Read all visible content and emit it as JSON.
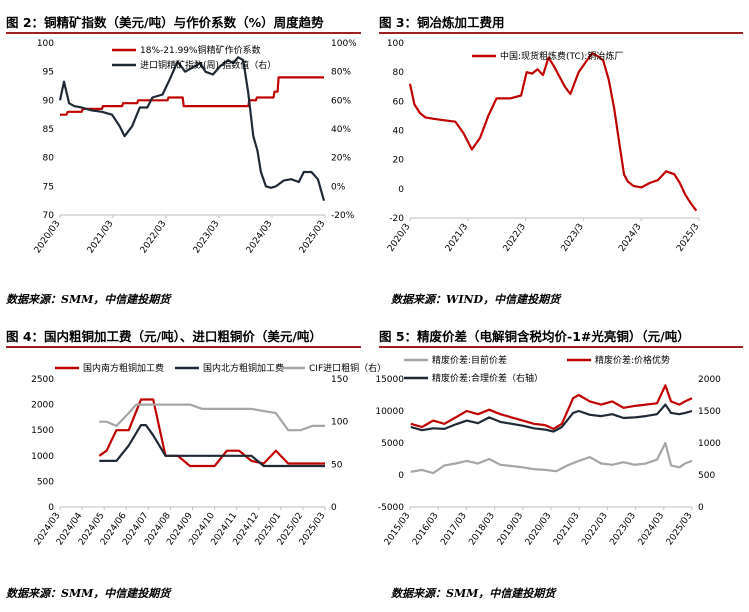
{
  "panels": {
    "p2": {
      "title": "图 2：铜精矿指数（美元/吨）与作价系数（%）周度趋势",
      "source": "数据来源：SMM，中信建投期货"
    },
    "p3": {
      "title": "图 3：铜冶炼加工费用",
      "source": "数据来源：WIND，中信建投期货"
    },
    "p4": {
      "title": "图 4：国内粗铜加工费（元/吨）、进口粗铜价（美元/吨）",
      "source": "数据来源：SMM，中信建投期货"
    },
    "p5": {
      "title": "图 5：精废价差（电解铜含税均价-1#光亮铜）（元/吨）",
      "source": "数据来源：SMM，中信建投期货"
    }
  },
  "colors": {
    "red": "#c00000",
    "dark": "#1f2a36",
    "gray": "#a6a6a6",
    "rule": "#9e1f1f"
  },
  "chart_data": [
    {
      "id": "fig2",
      "type": "line",
      "x_ticks": [
        "2020/03",
        "2021/03",
        "2022/03",
        "2023/03",
        "2024/03",
        "2025/03"
      ],
      "x_range": [
        2020.17,
        2025.42
      ],
      "ylim": [
        70,
        100
      ],
      "y_ticks": [
        70,
        75,
        80,
        85,
        90,
        95,
        100
      ],
      "y2lim": [
        -20,
        100
      ],
      "y2_ticks": [
        "-20%",
        "0%",
        "20%",
        "40%",
        "60%",
        "80%",
        "100%"
      ],
      "y2_values": [
        -20,
        0,
        20,
        40,
        60,
        80,
        100
      ],
      "legend": [
        "18%-21.99%铜精矿作价系数",
        "进口铜精矿指数(周)-指数值（右）"
      ],
      "series": [
        {
          "name": "18%-21.99%铜精矿作价系数",
          "axis": "left",
          "color": "red",
          "x": [
            2020.17,
            2020.3,
            2020.32,
            2020.6,
            2020.62,
            2021.0,
            2021.02,
            2021.4,
            2021.42,
            2021.7,
            2021.72,
            2022.3,
            2022.32,
            2022.6,
            2022.62,
            2023.0,
            2023.02,
            2023.9,
            2023.92,
            2024.05,
            2024.07,
            2024.4,
            2024.42,
            2024.48,
            2024.5,
            2025.0,
            2025.02,
            2025.4
          ],
          "y": [
            87.5,
            87.5,
            88,
            88,
            88.5,
            88.5,
            89,
            89,
            89.5,
            89.5,
            90,
            90,
            90.5,
            90.5,
            89,
            89,
            89,
            89,
            90,
            90,
            90.5,
            90.5,
            91.5,
            91.5,
            94,
            94,
            94,
            94
          ]
        },
        {
          "name": "进口铜精矿指数(周)-指数值（右）",
          "axis": "right",
          "color": "dark",
          "x": [
            2020.17,
            2020.25,
            2020.35,
            2020.45,
            2020.6,
            2020.8,
            2021.0,
            2021.2,
            2021.35,
            2021.45,
            2021.6,
            2021.75,
            2021.9,
            2022.0,
            2022.2,
            2022.35,
            2022.5,
            2022.65,
            2022.8,
            2022.95,
            2023.05,
            2023.2,
            2023.35,
            2023.5,
            2023.6,
            2023.7,
            2023.8,
            2023.9,
            2024.0,
            2024.08,
            2024.15,
            2024.25,
            2024.35,
            2024.45,
            2024.6,
            2024.75,
            2024.9,
            2025.0,
            2025.15,
            2025.28,
            2025.4
          ],
          "y": [
            60,
            73,
            58,
            56,
            55,
            53,
            52,
            50,
            42,
            35,
            42,
            55,
            55,
            62,
            64,
            75,
            87,
            80,
            83,
            86,
            80,
            78,
            84,
            88,
            86,
            90,
            88,
            65,
            35,
            25,
            10,
            0,
            -1,
            0,
            4,
            5,
            3,
            10,
            10,
            5,
            -10
          ]
        }
      ]
    },
    {
      "id": "fig3",
      "type": "line",
      "x_ticks": [
        "2020/3",
        "2021/3",
        "2022/3",
        "2023/3",
        "2024/3",
        "2025/3"
      ],
      "x_range": [
        2020.17,
        2025.45
      ],
      "ylim": [
        -20,
        100
      ],
      "y_ticks": [
        -20,
        0,
        20,
        40,
        60,
        80,
        100
      ],
      "legend": [
        "中国:现货粗炼费(TC):铜冶炼厂"
      ],
      "series": [
        {
          "name": "中国:现货粗炼费(TC):铜冶炼厂",
          "color": "red",
          "x": [
            2020.17,
            2020.25,
            2020.35,
            2020.45,
            2020.6,
            2020.8,
            2021.0,
            2021.15,
            2021.3,
            2021.45,
            2021.6,
            2021.75,
            2021.85,
            2022.0,
            2022.2,
            2022.3,
            2022.4,
            2022.5,
            2022.6,
            2022.7,
            2022.8,
            2022.9,
            2023.0,
            2023.1,
            2023.25,
            2023.4,
            2023.5,
            2023.6,
            2023.7,
            2023.8,
            2023.9,
            2024.0,
            2024.08,
            2024.15,
            2024.25,
            2024.4,
            2024.55,
            2024.7,
            2024.85,
            2025.0,
            2025.1,
            2025.2,
            2025.3,
            2025.4
          ],
          "y": [
            72,
            58,
            52,
            49,
            48,
            47,
            46,
            38,
            27,
            35,
            50,
            62,
            62,
            62,
            64,
            80,
            79,
            82,
            78,
            90,
            84,
            77,
            70,
            65,
            80,
            88,
            93,
            91,
            88,
            75,
            55,
            30,
            10,
            5,
            2,
            1,
            4,
            6,
            12,
            10,
            4,
            -4,
            -10,
            -15
          ]
        }
      ]
    },
    {
      "id": "fig4",
      "type": "line",
      "x_ticks": [
        "2024/03",
        "2024/04",
        "2024/05",
        "2024/06",
        "2024/07",
        "2024/08",
        "2024/09",
        "2024/10",
        "2024/11",
        "2024/12",
        "2025/01",
        "2025/02",
        "2025/03"
      ],
      "x_range": [
        2024.17,
        2025.25
      ],
      "ylim": [
        0,
        2500
      ],
      "y_ticks": [
        0,
        500,
        1000,
        1500,
        2000,
        2500
      ],
      "y2lim": [
        0,
        150
      ],
      "y2_ticks": [
        0,
        50,
        100,
        150
      ],
      "legend": [
        "国内南方粗铜加工费",
        "国内北方粗铜加工费",
        "CIF进口粗铜（右）"
      ],
      "series": [
        {
          "name": "国内南方粗铜加工费",
          "axis": "left",
          "color": "red",
          "x": [
            2024.33,
            2024.36,
            2024.4,
            2024.45,
            2024.5,
            2024.52,
            2024.55,
            2024.6,
            2024.65,
            2024.7,
            2024.75,
            2024.8,
            2024.85,
            2024.9,
            2024.95,
            2025.0,
            2025.05,
            2025.1,
            2025.15,
            2025.2,
            2025.25
          ],
          "y": [
            1000,
            1100,
            1500,
            1500,
            2100,
            2100,
            2100,
            1000,
            1000,
            800,
            800,
            800,
            1100,
            1100,
            900,
            850,
            1100,
            850,
            850,
            850,
            850
          ]
        },
        {
          "name": "国内北方粗铜加工费",
          "axis": "left",
          "color": "dark",
          "x": [
            2024.33,
            2024.4,
            2024.45,
            2024.5,
            2024.52,
            2024.55,
            2024.6,
            2024.65,
            2024.7,
            2024.75,
            2024.8,
            2024.85,
            2024.9,
            2024.95,
            2025.0,
            2025.05,
            2025.1,
            2025.15,
            2025.2,
            2025.25
          ],
          "y": [
            900,
            900,
            1200,
            1600,
            1600,
            1400,
            1000,
            1000,
            1000,
            1000,
            1000,
            1000,
            1000,
            1000,
            800,
            800,
            800,
            800,
            800,
            800
          ]
        },
        {
          "name": "CIF进口粗铜（右）",
          "axis": "right",
          "color": "gray",
          "x": [
            2024.33,
            2024.36,
            2024.4,
            2024.45,
            2024.48,
            2024.52,
            2024.6,
            2024.65,
            2024.7,
            2024.75,
            2024.85,
            2024.95,
            2025.05,
            2025.1,
            2025.15,
            2025.2,
            2025.25
          ],
          "y": [
            100,
            100,
            95,
            110,
            120,
            120,
            120,
            120,
            120,
            115,
            115,
            115,
            110,
            90,
            90,
            95,
            95
          ]
        }
      ]
    },
    {
      "id": "fig5",
      "type": "line",
      "x_ticks": [
        "2015/03",
        "2016/03",
        "2017/03",
        "2018/03",
        "2019/03",
        "2020/03",
        "2021/03",
        "2022/03",
        "2023/03",
        "2024/03",
        "2025/03"
      ],
      "x_range": [
        2015.17,
        2025.25
      ],
      "ylim": [
        -5000,
        15000
      ],
      "y_ticks": [
        -5000,
        0,
        5000,
        10000,
        15000
      ],
      "y2lim": [
        0,
        2000
      ],
      "y2_ticks": [
        0,
        500,
        1000,
        1500,
        2000
      ],
      "legend": [
        "精废价差:目前价差",
        "精废价差:价格优势",
        "精废价差:合理价差（右轴）"
      ],
      "series": [
        {
          "name": "精废价差:目前价差",
          "axis": "left",
          "color": "gray",
          "x": [
            2015.2,
            2015.6,
            2016.0,
            2016.4,
            2016.8,
            2017.2,
            2017.6,
            2018.0,
            2018.4,
            2018.8,
            2019.2,
            2019.6,
            2020.0,
            2020.4,
            2020.8,
            2021.2,
            2021.6,
            2022.0,
            2022.4,
            2022.8,
            2023.2,
            2023.6,
            2024.0,
            2024.3,
            2024.5,
            2024.8,
            2025.0,
            2025.25
          ],
          "y": [
            500,
            800,
            300,
            1500,
            1800,
            2200,
            1800,
            2500,
            1600,
            1400,
            1200,
            900,
            800,
            600,
            1500,
            2200,
            2800,
            1800,
            1600,
            2000,
            1600,
            1800,
            2400,
            5000,
            1500,
            1200,
            1800,
            2200
          ]
        },
        {
          "name": "精废价差:价格优势",
          "axis": "left",
          "color": "red",
          "x": [
            2015.2,
            2015.6,
            2016.0,
            2016.4,
            2016.8,
            2017.2,
            2017.6,
            2018.0,
            2018.4,
            2018.8,
            2019.2,
            2019.6,
            2020.0,
            2020.3,
            2020.6,
            2021.0,
            2021.2,
            2021.6,
            2022.0,
            2022.4,
            2022.8,
            2023.2,
            2023.6,
            2024.0,
            2024.3,
            2024.5,
            2024.8,
            2025.0,
            2025.25
          ],
          "y": [
            8000,
            7500,
            8500,
            8000,
            9000,
            10000,
            9500,
            10200,
            9500,
            9000,
            8500,
            8000,
            7800,
            7200,
            8000,
            12000,
            12500,
            11500,
            11000,
            11500,
            10500,
            10800,
            11000,
            11200,
            14000,
            11500,
            11000,
            11500,
            12000
          ]
        },
        {
          "name": "精废价差:合理价差（右轴）",
          "axis": "right",
          "color": "dark",
          "x": [
            2015.2,
            2015.6,
            2016.0,
            2016.4,
            2016.8,
            2017.2,
            2017.6,
            2018.0,
            2018.4,
            2018.8,
            2019.2,
            2019.6,
            2020.0,
            2020.3,
            2020.6,
            2021.0,
            2021.2,
            2021.6,
            2022.0,
            2022.4,
            2022.8,
            2023.2,
            2023.6,
            2024.0,
            2024.3,
            2024.5,
            2024.8,
            2025.0,
            2025.25
          ],
          "y": [
            1250,
            1200,
            1230,
            1220,
            1290,
            1350,
            1310,
            1400,
            1330,
            1300,
            1270,
            1230,
            1210,
            1180,
            1250,
            1470,
            1500,
            1440,
            1420,
            1450,
            1390,
            1400,
            1420,
            1450,
            1600,
            1470,
            1450,
            1470,
            1500
          ]
        }
      ]
    }
  ]
}
